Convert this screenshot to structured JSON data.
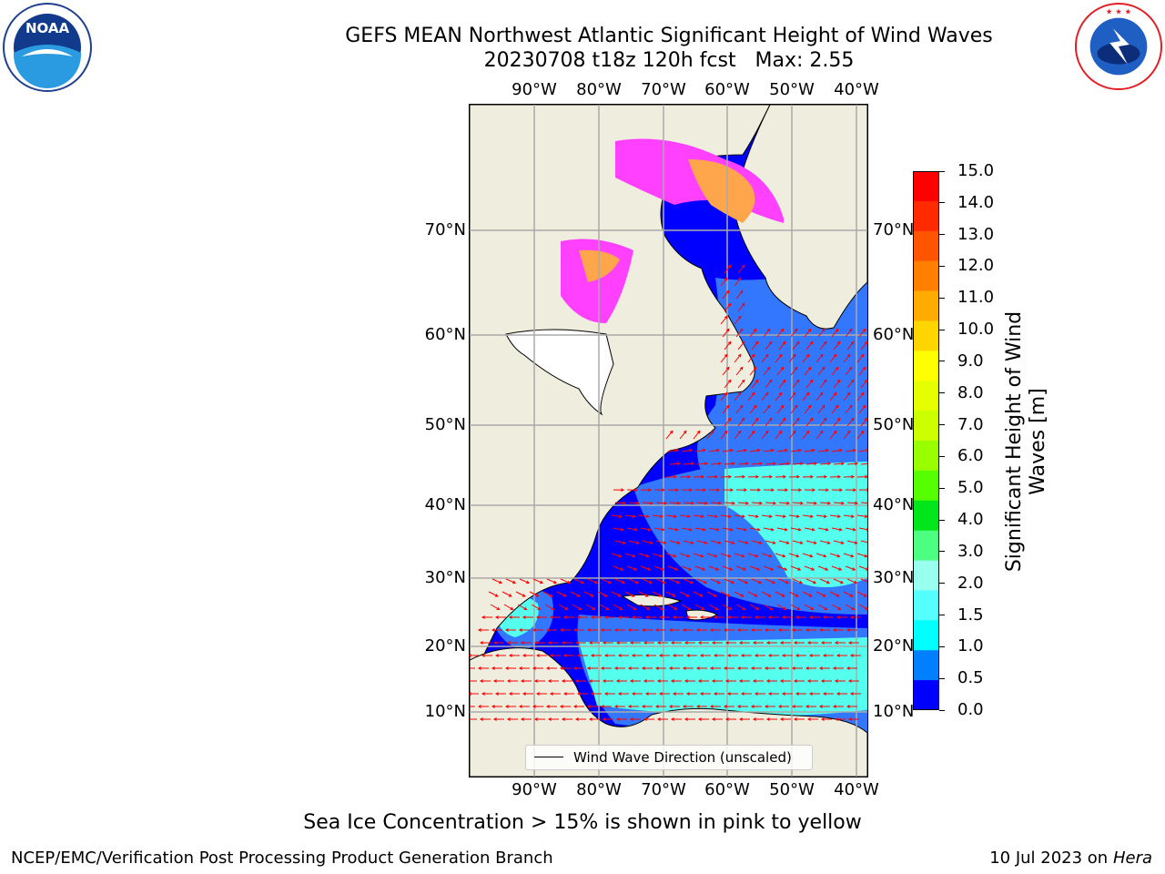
{
  "title": {
    "line1": "GEFS MEAN Northwest Atlantic Significant Height of Wind Waves",
    "line2": "20230708 t18z 120h fcst   Max: 2.55"
  },
  "logos": {
    "noaa_text": "NOAA",
    "noaa_ring": "NATIONAL OCEANIC AND ATMOSPHERIC ADMINISTRATION · U.S. DEPARTMENT OF COMMERCE",
    "nws_ring": "NATIONAL WEATHER SERVICE"
  },
  "axes": {
    "lon_labels": [
      "90°W",
      "80°W",
      "70°W",
      "60°W",
      "50°W",
      "40°W"
    ],
    "lat_labels": [
      "70°N",
      "60°N",
      "50°N",
      "40°N",
      "30°N",
      "20°N",
      "10°N"
    ]
  },
  "colorbar": {
    "label": "Significant Height of Wind Waves [m]",
    "ticks": [
      "15.0",
      "14.0",
      "13.0",
      "12.0",
      "11.0",
      "10.0",
      "9.0",
      "8.0",
      "7.0",
      "6.0",
      "5.0",
      "4.0",
      "3.0",
      "2.0",
      "1.5",
      "1.0",
      "0.5",
      "0.0"
    ],
    "colors_top_to_bottom": [
      "#ff0000",
      "#ff2a00",
      "#ff5500",
      "#ff8000",
      "#ffab00",
      "#ffd500",
      "#ffff00",
      "#e6ff00",
      "#ccff00",
      "#99ff00",
      "#55ff00",
      "#00e61a",
      "#4cff80",
      "#99ffee",
      "#55ffff",
      "#00ffff",
      "#0080ff",
      "#0000ff"
    ]
  },
  "legend": {
    "label": "Wind Wave Direction (unscaled)"
  },
  "footer": {
    "note": "Sea Ice Concentration > 15% is shown in pink to yellow",
    "credit": "NCEP/EMC/Verification Post Processing Product Generation Branch",
    "date": "10 Jul 2023 on ",
    "machine": "Hera"
  },
  "map_colors": {
    "land": "#efedde",
    "ocean_calm": "#0000ff",
    "ocean_low": "#3377ff",
    "ocean_mid": "#55ffee",
    "ice_pink": "#ff40ff",
    "ice_orange": "#ffa64d",
    "gridline": "#aaaaaa",
    "arrows": "#ff0000"
  }
}
